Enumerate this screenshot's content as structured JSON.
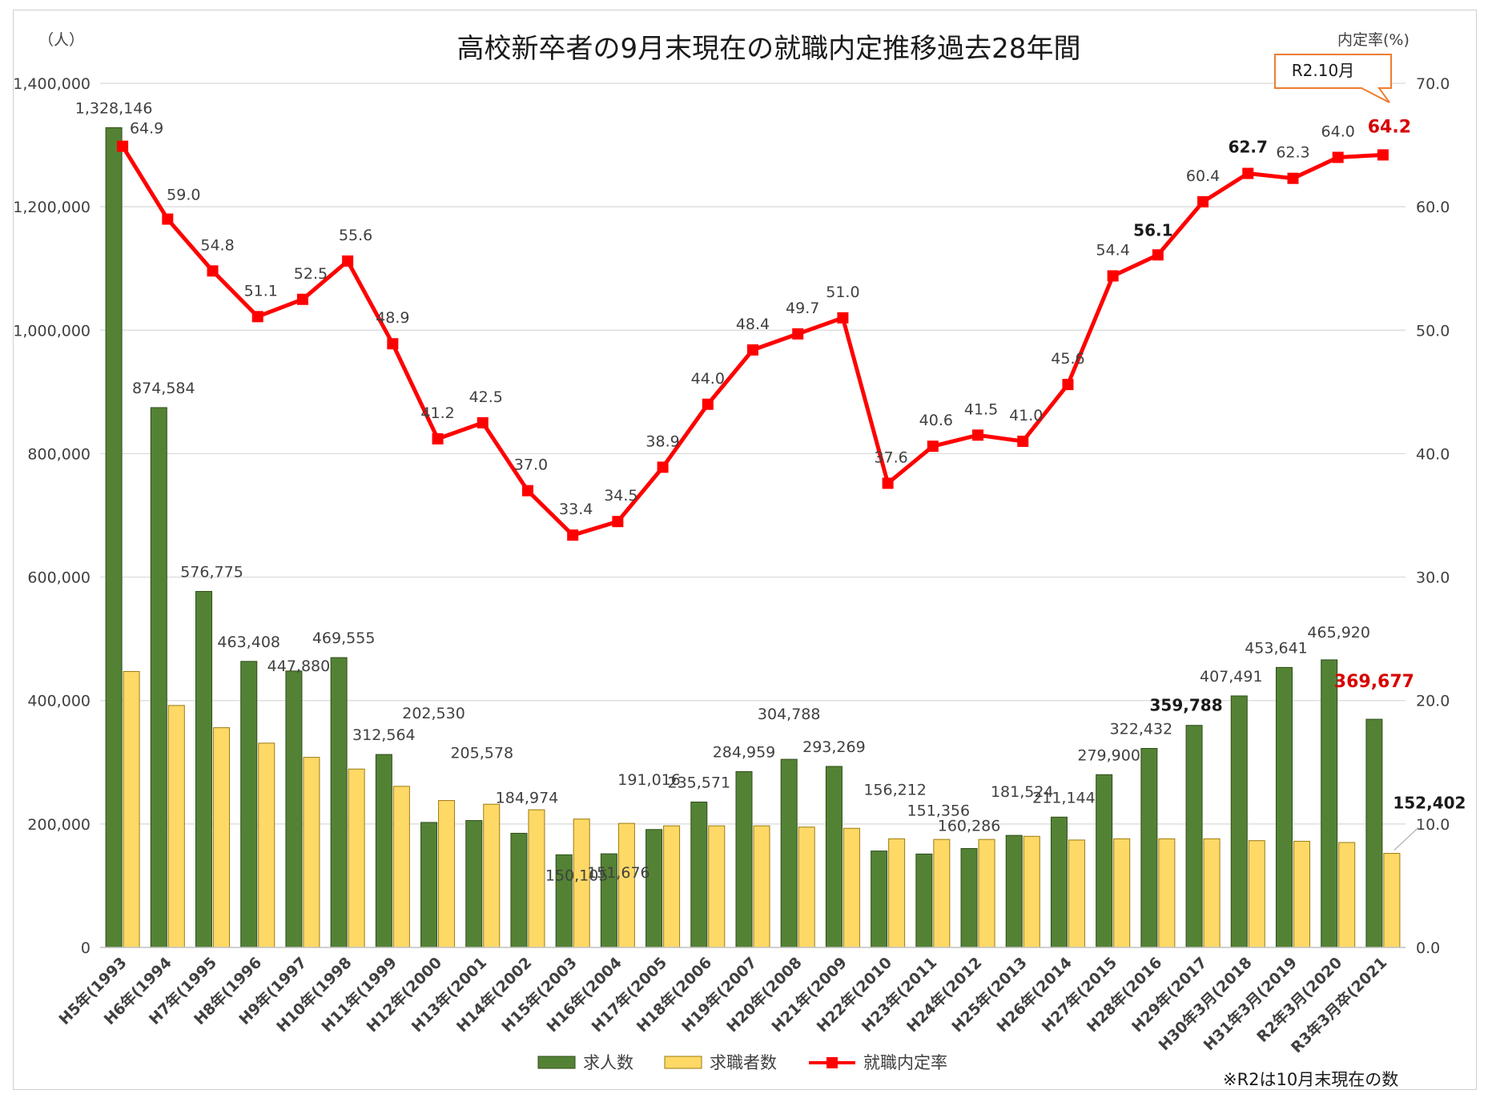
{
  "chart_data": {
    "type": "bar",
    "title": "高校新卒者の9月末現在の就職内定推移過去28年間",
    "y_left_unit": "（人）",
    "y_right_unit": "内定率(%)",
    "ylim_left": [
      0,
      1400000
    ],
    "ylim_right": [
      0,
      70
    ],
    "left_ticks": [
      "0",
      "200,000",
      "400,000",
      "600,000",
      "800,000",
      "1,000,000",
      "1,200,000",
      "1,400,000"
    ],
    "right_ticks": [
      "0.0",
      "10.0",
      "20.0",
      "30.0",
      "40.0",
      "50.0",
      "60.0",
      "70.0"
    ],
    "grid": true,
    "legend_position": "bottom",
    "categories": [
      "H5年(1993",
      "H6年(1994",
      "H7年(1995",
      "H8年(1996",
      "H9年(1997",
      "H10年(1998",
      "H11年(1999",
      "H12年(2000",
      "H13年(2001",
      "H14年(2002",
      "H15年(2003",
      "H16年(2004",
      "H17年(2005",
      "H18年(2006",
      "H19年(2007",
      "H20年(2008",
      "H21年(2009",
      "H22年(2010",
      "H23年(2011",
      "H24年(2012",
      "H25年(2013",
      "H26年(2014",
      "H27年(2015",
      "H28年(2016",
      "H29年(2017",
      "H30年3月(2018",
      "H31年3月(2019",
      "R2年3月(2020",
      "R3年3月卒(2021"
    ],
    "series": [
      {
        "name": "求人数",
        "kind": "bar",
        "color": "#548235",
        "values": [
          1328146,
          874584,
          576775,
          463408,
          447880,
          469555,
          312564,
          202530,
          205578,
          184974,
          150105,
          151676,
          191016,
          235571,
          284959,
          304788,
          293269,
          156212,
          151356,
          160286,
          181524,
          211144,
          279900,
          322432,
          359788,
          407491,
          453641,
          465920,
          369677
        ],
        "labels": [
          "1,328,146",
          "874,584",
          "576,775",
          "463,408",
          "447,880",
          "469,555",
          "312,564",
          "202,530",
          "205,578",
          "184,974",
          "150,105",
          "151,676",
          "191,016",
          "235,571",
          "284,959",
          "304,788",
          "293,269",
          "156,212",
          "151,356",
          "160,286",
          "181,524",
          "211,144",
          "279,900",
          "322,432",
          "359,788",
          "407,491",
          "453,641",
          "465,920",
          "369,677"
        ]
      },
      {
        "name": "求職者数",
        "kind": "bar",
        "color": "#ffd966",
        "values": [
          447000,
          392000,
          356000,
          331000,
          308000,
          289000,
          261000,
          238000,
          232000,
          223000,
          208000,
          201000,
          197000,
          197000,
          197000,
          195000,
          193000,
          176000,
          175000,
          175000,
          180000,
          174000,
          176000,
          176000,
          176000,
          173000,
          172000,
          170000,
          152402
        ],
        "labels": [
          "",
          "",
          "",
          "",
          "",
          "",
          "",
          "",
          "",
          "",
          "",
          "",
          "",
          "",
          "",
          "",
          "",
          "",
          "",
          "",
          "",
          "",
          "",
          "",
          "",
          "",
          "",
          "",
          "152,402"
        ]
      },
      {
        "name": "就職内定率",
        "kind": "line",
        "color": "#ff0000",
        "values": [
          64.9,
          59.0,
          54.8,
          51.1,
          52.5,
          55.6,
          48.9,
          41.2,
          42.5,
          37.0,
          33.4,
          34.5,
          38.9,
          44.0,
          48.4,
          49.7,
          51.0,
          37.6,
          40.6,
          41.5,
          41.0,
          45.6,
          54.4,
          56.1,
          60.4,
          62.7,
          62.3,
          64.0,
          64.2
        ],
        "labels": [
          "64.9",
          "59.0",
          "54.8",
          "51.1",
          "52.5",
          "55.6",
          "48.9",
          "41.2",
          "42.5",
          "37.0",
          "33.4",
          "34.5",
          "38.9",
          "44.0",
          "48.4",
          "49.7",
          "51.0",
          "37.6",
          "40.6",
          "41.5",
          "41.0",
          "45.6",
          "54.4",
          "56.1",
          "60.4",
          "62.7",
          "62.3",
          "64.0",
          "64.2"
        ]
      }
    ],
    "callout": "R2.10月",
    "note": "※R2は10月末現在の数"
  }
}
